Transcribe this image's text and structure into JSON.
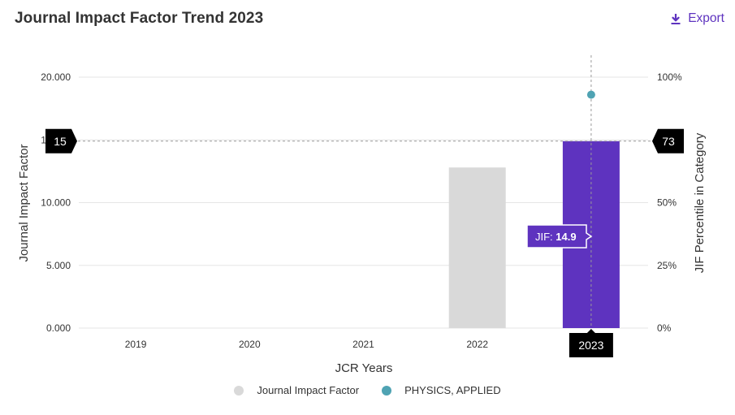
{
  "header": {
    "title": "Journal Impact Factor Trend 2023",
    "export_label": "Export",
    "export_icon": "download-icon"
  },
  "chart_data": {
    "type": "bar",
    "categories": [
      "2019",
      "2020",
      "2021",
      "2022",
      "2023"
    ],
    "series": [
      {
        "name": "Journal Impact Factor",
        "values": [
          null,
          null,
          null,
          12.8,
          14.9
        ],
        "axis": "left"
      },
      {
        "name": "PHYSICS, APPLIED",
        "values": [
          null,
          null,
          null,
          null,
          93
        ],
        "axis": "right",
        "type": "scatter"
      }
    ],
    "xlabel": "JCR Years",
    "ylabel": "Journal Impact Factor",
    "y2label": "JIF Percentile in Category",
    "ylim": [
      0,
      20
    ],
    "y2lim": [
      0,
      100
    ],
    "yticks": [
      "0.000",
      "5.000",
      "10.000",
      "15.000",
      "20.000"
    ],
    "y2ticks": [
      "0%",
      "25%",
      "50%",
      "75%",
      "100%"
    ],
    "grid": true,
    "legend_position": "bottom-center",
    "colors": {
      "bar_default": "#d9d9d9",
      "bar_highlight": "#5e33bf",
      "percentile_dot": "#4fa3b3",
      "crosshair_tag": "#000000"
    },
    "highlight": {
      "category": "2023",
      "left_value_label": "15",
      "right_value_label": "73",
      "x_label": "2023",
      "tooltip_prefix": "JIF: ",
      "tooltip_value": "14.9"
    }
  }
}
